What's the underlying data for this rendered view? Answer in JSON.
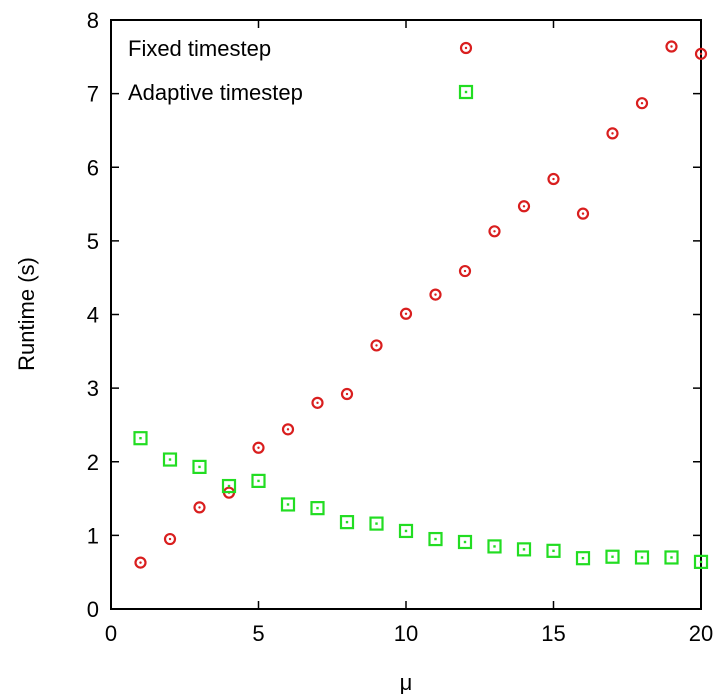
{
  "chart_data": {
    "type": "scatter",
    "title": "",
    "xlabel": "μ",
    "ylabel": "Runtime (s)",
    "xlim": [
      0,
      20
    ],
    "ylim": [
      0,
      8
    ],
    "xticks": [
      "0",
      "5",
      "10",
      "15",
      "20"
    ],
    "yticks": [
      "0",
      "1",
      "2",
      "3",
      "4",
      "5",
      "6",
      "7",
      "8"
    ],
    "grid": false,
    "legend_position": "top",
    "series": [
      {
        "name": "Fixed timestep",
        "marker": "circle",
        "color": "#d91e1e",
        "x": [
          1,
          2,
          3,
          4,
          5,
          6,
          7,
          8,
          9,
          10,
          11,
          12,
          13,
          14,
          15,
          16,
          17,
          18,
          19,
          20
        ],
        "y": [
          0.63,
          0.95,
          1.38,
          1.58,
          2.19,
          2.44,
          2.8,
          2.92,
          3.58,
          4.01,
          4.27,
          4.59,
          5.13,
          5.47,
          5.84,
          5.37,
          6.46,
          6.87,
          7.64,
          7.54
        ]
      },
      {
        "name": "Adaptive timestep",
        "marker": "square",
        "color": "#22dd22",
        "x": [
          1,
          2,
          3,
          4,
          5,
          6,
          7,
          8,
          9,
          10,
          11,
          12,
          13,
          14,
          15,
          16,
          17,
          18,
          19,
          20
        ],
        "y": [
          2.32,
          2.03,
          1.93,
          1.67,
          1.74,
          1.42,
          1.37,
          1.18,
          1.16,
          1.06,
          0.95,
          0.91,
          0.85,
          0.81,
          0.79,
          0.69,
          0.71,
          0.7,
          0.7,
          0.64
        ]
      }
    ]
  }
}
